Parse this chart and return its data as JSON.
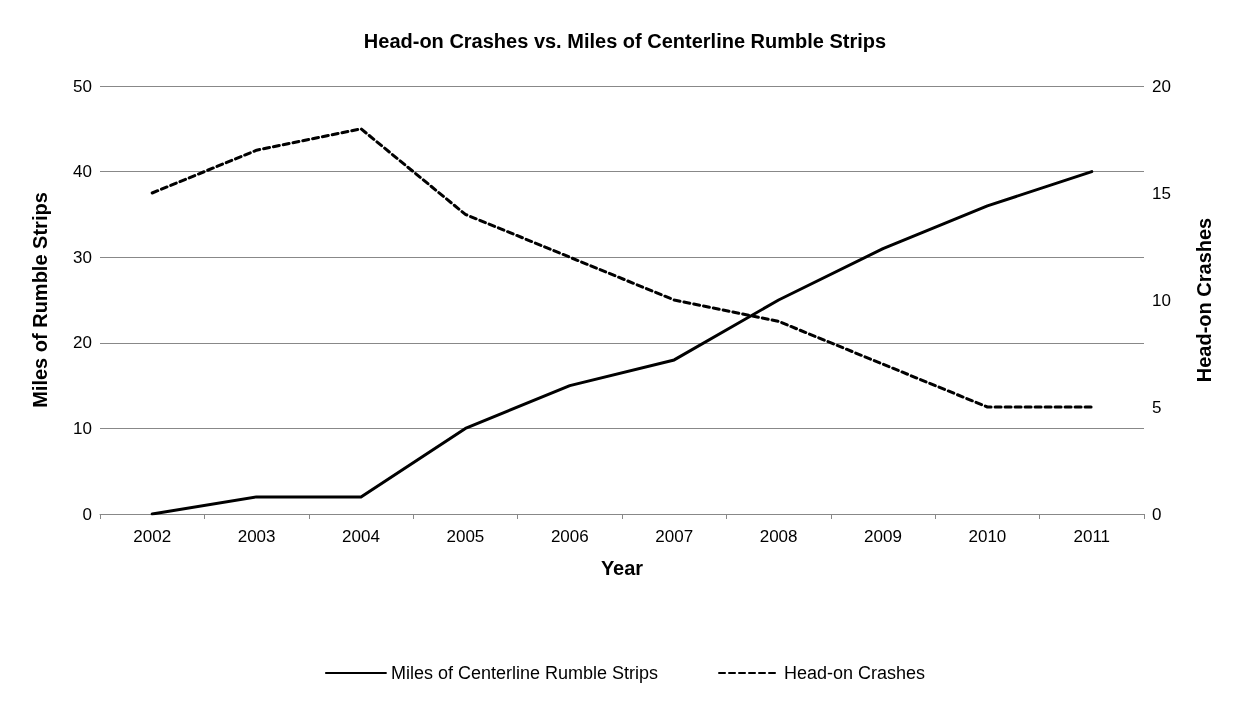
{
  "chart_data": {
    "type": "line",
    "title": "Head-on Crashes vs. Miles of Centerline Rumble Strips",
    "xlabel": "Year",
    "ylabel": "Miles of Rumble Strips",
    "y2label": "Head-on Crashes",
    "categories": [
      "2002",
      "2003",
      "2004",
      "2005",
      "2006",
      "2007",
      "2008",
      "2009",
      "2010",
      "2011"
    ],
    "series": [
      {
        "name": "Miles of Centerline Rumble Strips",
        "color": "#000000",
        "line_style": "solid",
        "values": [
          0,
          2,
          2,
          10,
          15,
          18,
          25,
          31,
          36,
          40
        ]
      },
      {
        "name": "Head-on Crashes",
        "color": "#000000",
        "line_style": "dashed",
        "axis": "y2",
        "values": [
          15,
          17,
          18,
          14,
          12,
          10,
          9,
          7,
          5,
          5
        ]
      }
    ],
    "ylim": [
      0,
      50
    ],
    "yticks": [
      0,
      10,
      20,
      30,
      40,
      50
    ],
    "y2lim": [
      0,
      20
    ],
    "y2ticks": [
      0,
      5,
      10,
      15,
      20
    ],
    "grid": "y",
    "legend": "bottom",
    "marker": "none"
  }
}
